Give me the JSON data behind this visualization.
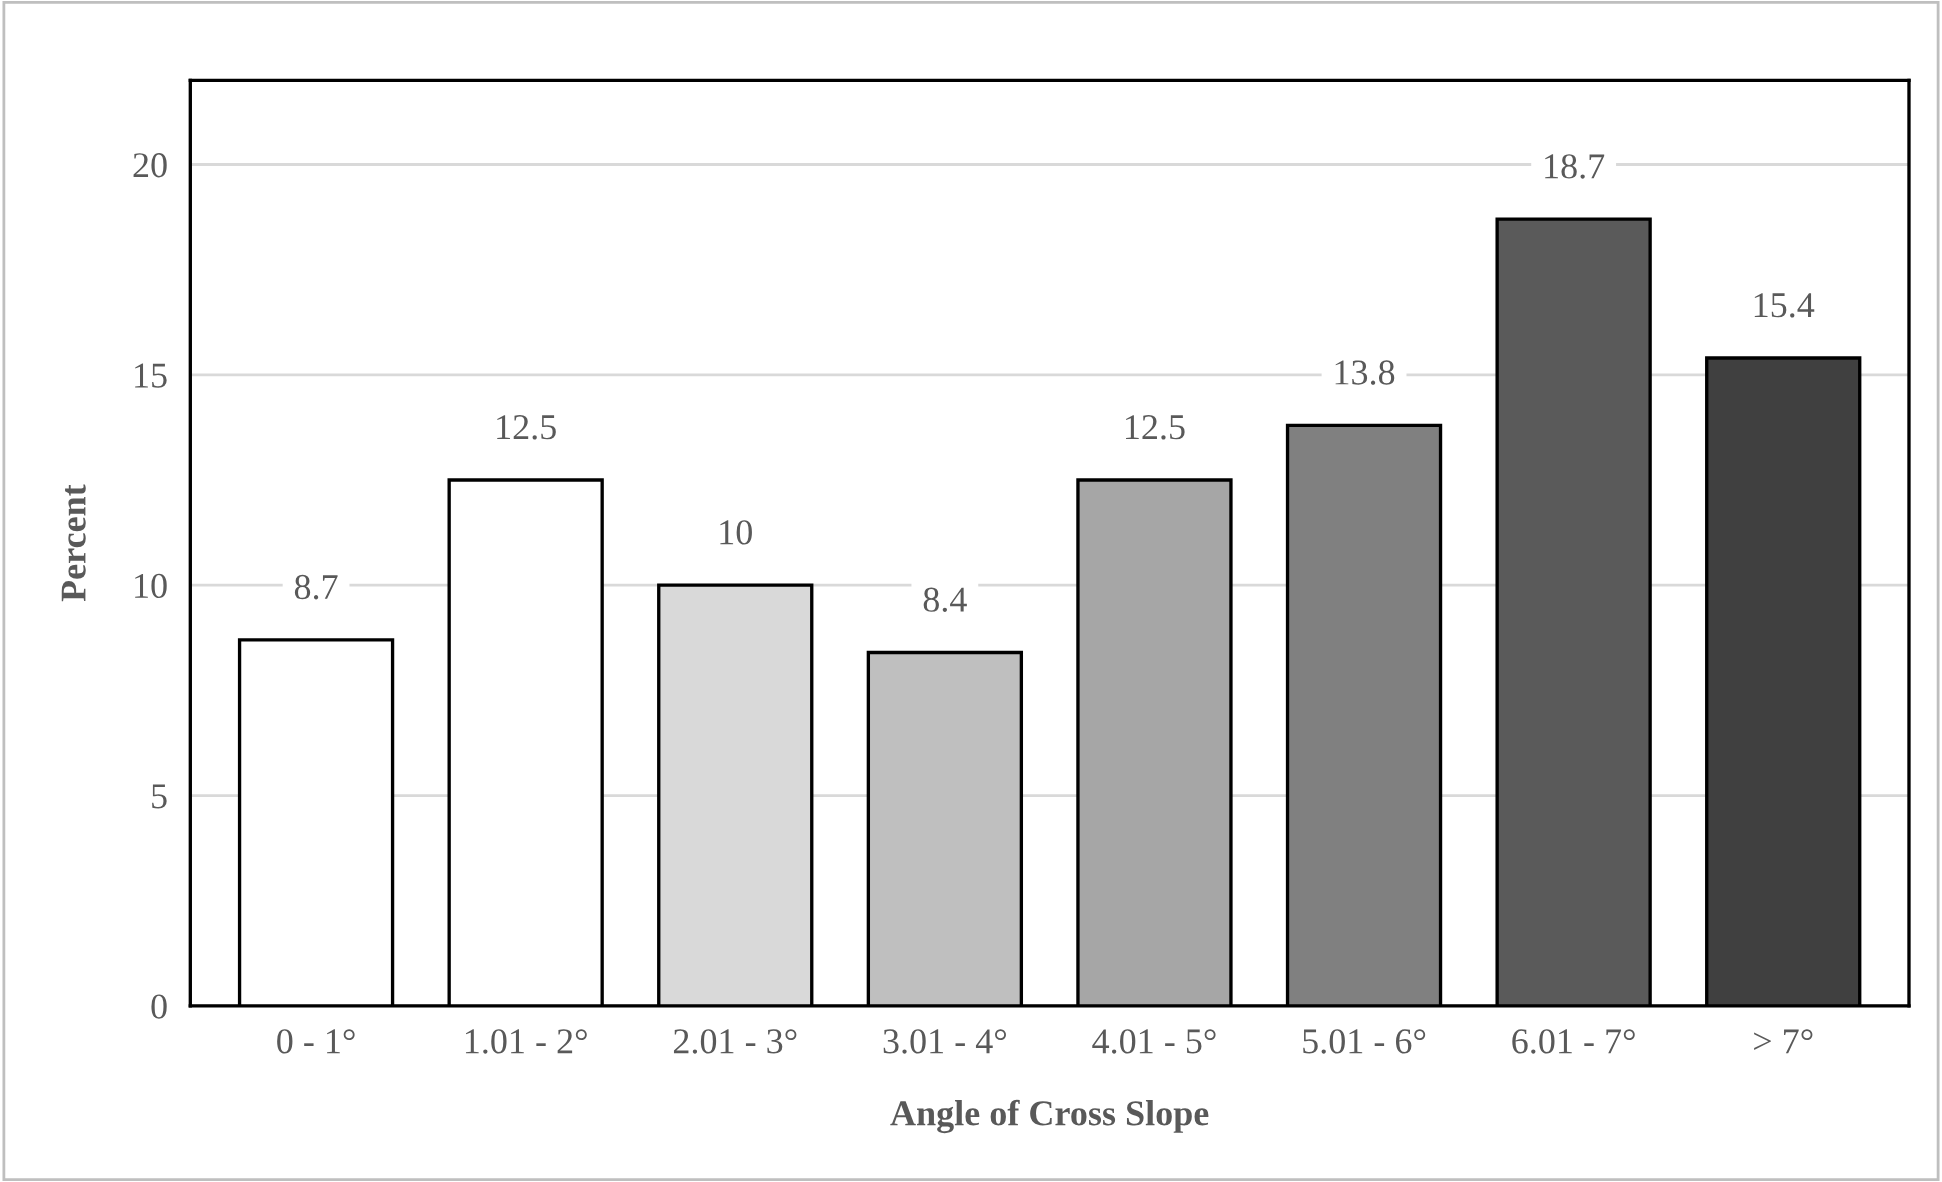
{
  "chart_data": {
    "type": "bar",
    "xlabel": "Angle of Cross Slope",
    "ylabel": "Percent",
    "categories": [
      "0 - 1°",
      "1.01 - 2°",
      "2.01 - 3°",
      "3.01 - 4°",
      "4.01 - 5°",
      "5.01 - 6°",
      "6.01 - 7°",
      "> 7°"
    ],
    "values": [
      8.7,
      12.5,
      10,
      8.4,
      12.5,
      13.8,
      18.7,
      15.4
    ],
    "colors": [
      "#ffffff",
      "#ffffff",
      "#d9d9d9",
      "#bfbfbf",
      "#a6a6a6",
      "#808080",
      "#5a5a5a",
      "#404040"
    ],
    "ylim": [
      0,
      22
    ],
    "yticks": [
      0,
      5,
      10,
      15,
      20
    ],
    "grid": "y",
    "data_labels": true,
    "legend": false
  }
}
